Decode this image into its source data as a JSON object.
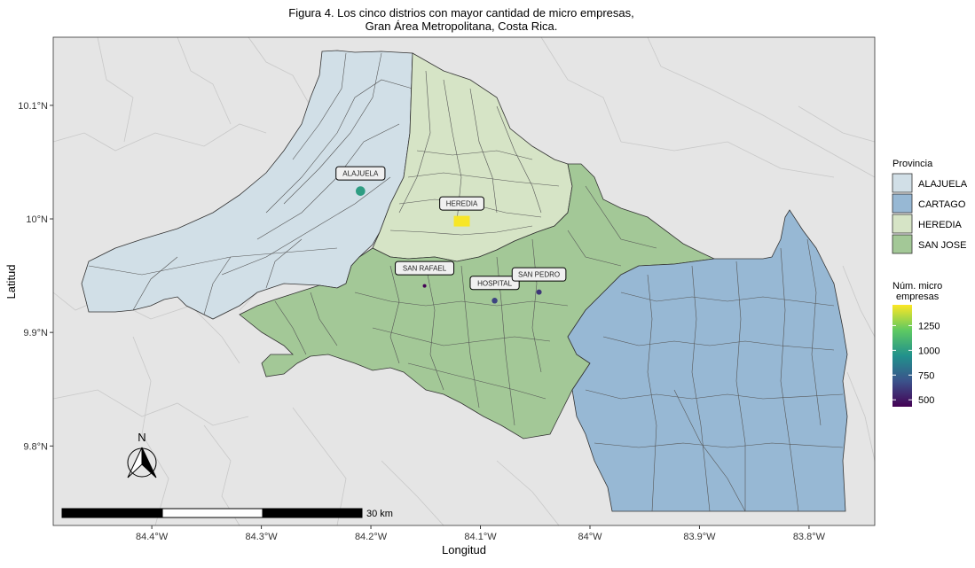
{
  "chart_data": {
    "type": "scatter",
    "title": [
      "Figura 4. Los cinco distrios con mayor cantidad de micro empresas,",
      "Gran Área Metropolitana, Costa Rica."
    ],
    "xlabel": "Longitud",
    "ylabel": "Latitud",
    "xlim": [
      -84.49,
      -83.74
    ],
    "ylim": [
      9.73,
      10.16
    ],
    "x_ticks": [
      {
        "value": -84.4,
        "label": "84.4°W"
      },
      {
        "value": -84.3,
        "label": "84.3°W"
      },
      {
        "value": -84.2,
        "label": "84.2°W"
      },
      {
        "value": -84.1,
        "label": "84.1°W"
      },
      {
        "value": -84.0,
        "label": "84°W"
      },
      {
        "value": -83.9,
        "label": "83.9°W"
      },
      {
        "value": -83.8,
        "label": "83.8°W"
      }
    ],
    "y_ticks": [
      {
        "value": 9.8,
        "label": "9.8°N"
      },
      {
        "value": 9.9,
        "label": "9.9°N"
      },
      {
        "value": 10.0,
        "label": "10°N"
      },
      {
        "value": 10.1,
        "label": "10.1°N"
      }
    ],
    "grid": false,
    "points": [
      {
        "name": "ALAJUELA",
        "lon": -84.2095,
        "lat": 10.0245,
        "value": 1000
      },
      {
        "name": "HEREDIA",
        "lon": -84.117,
        "lat": 9.998,
        "value": 1450
      },
      {
        "name": "SAN RAFAEL",
        "lon": -84.151,
        "lat": 9.941,
        "value": 430
      },
      {
        "name": "HOSPITAL",
        "lon": -84.087,
        "lat": 9.928,
        "value": 640
      },
      {
        "name": "SAN PEDRO",
        "lon": -84.0465,
        "lat": 9.9355,
        "value": 600
      }
    ],
    "legend_province": {
      "title": "Provincia",
      "position": "right",
      "items": [
        {
          "label": "ALAJUELA",
          "color": "#d1dfe7"
        },
        {
          "label": "CARTAGO",
          "color": "#97b8d4"
        },
        {
          "label": "HEREDIA",
          "color": "#d6e4c6"
        },
        {
          "label": "SAN JOSE",
          "color": "#a3c897"
        }
      ]
    },
    "legend_colorbar": {
      "title": [
        "Núm. micro",
        "empresas"
      ],
      "position": "right",
      "range": [
        430,
        1460
      ],
      "ticks": [
        {
          "value": 500,
          "label": "500"
        },
        {
          "value": 750,
          "label": "750"
        },
        {
          "value": 1000,
          "label": "1000"
        },
        {
          "value": 1250,
          "label": "1250"
        }
      ],
      "colors": [
        "#440154",
        "#3b528b",
        "#21918c",
        "#5ec962",
        "#fde725"
      ]
    },
    "scale_bar": {
      "label": "30 km"
    },
    "north_arrow": {
      "label": "N"
    }
  }
}
